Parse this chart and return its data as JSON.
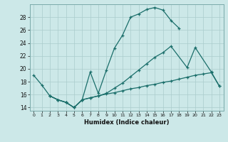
{
  "xlabel": "Humidex (Indice chaleur)",
  "bg_color": "#cce8e8",
  "grid_color_major": "#aacccc",
  "grid_color_minor": "#bbdddd",
  "line_color": "#1a6e6a",
  "xlim": [
    -0.5,
    23.5
  ],
  "ylim": [
    13.5,
    30.0
  ],
  "yticks": [
    14,
    16,
    18,
    20,
    22,
    24,
    26,
    28
  ],
  "line1_x": [
    0,
    1,
    2,
    3,
    4,
    5,
    6,
    7,
    8,
    9,
    10,
    11,
    12,
    13,
    14,
    15,
    16,
    17,
    18
  ],
  "line1_y": [
    19.0,
    17.5,
    15.8,
    15.2,
    14.8,
    14.0,
    15.2,
    19.5,
    16.2,
    19.8,
    23.2,
    25.2,
    28.0,
    28.5,
    29.2,
    29.5,
    29.1,
    27.5,
    26.3
  ],
  "line2_x": [
    2,
    3,
    4,
    5,
    6,
    7,
    8,
    9,
    10,
    11,
    12,
    13,
    14,
    15,
    16,
    17,
    19,
    20,
    22,
    23
  ],
  "line2_y": [
    15.8,
    15.2,
    14.8,
    14.0,
    15.2,
    15.5,
    15.8,
    16.2,
    17.0,
    17.8,
    18.8,
    19.8,
    20.8,
    21.8,
    22.5,
    23.5,
    20.2,
    23.3,
    19.5,
    17.3
  ],
  "line3_x": [
    2,
    3,
    4,
    5,
    6,
    7,
    8,
    9,
    10,
    11,
    12,
    13,
    14,
    15,
    16,
    17,
    18,
    19,
    20,
    21,
    22,
    23
  ],
  "line3_y": [
    15.8,
    15.2,
    14.8,
    14.0,
    15.2,
    15.5,
    15.8,
    16.1,
    16.3,
    16.6,
    16.9,
    17.1,
    17.4,
    17.6,
    17.9,
    18.1,
    18.4,
    18.7,
    19.0,
    19.2,
    19.4,
    17.3
  ]
}
